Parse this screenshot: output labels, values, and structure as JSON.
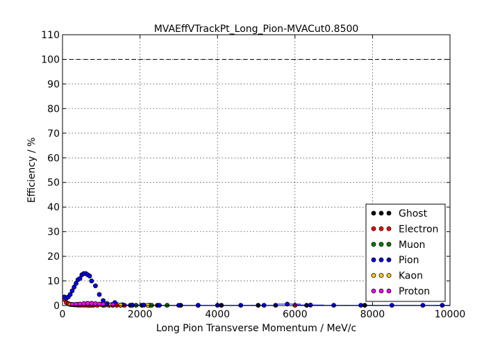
{
  "chart_data": {
    "type": "scatter",
    "title": "MVAEffVTrackPt_Long_Pion-MVACut0.8500",
    "xlabel": "Long Pion Transverse Momentum / MeV/c",
    "ylabel": "Efficiency / %",
    "xlim": [
      0,
      10000
    ],
    "ylim": [
      0,
      110
    ],
    "xticks": [
      "0",
      "2000",
      "4000",
      "6000",
      "8000",
      "10000"
    ],
    "yticks": [
      "0",
      "10",
      "20",
      "30",
      "40",
      "50",
      "60",
      "70",
      "80",
      "90",
      "100",
      "110"
    ],
    "grid": true,
    "reference_line": 100,
    "legend_position": "lower-right",
    "series": [
      {
        "name": "Ghost",
        "color": "#000000",
        "x": [
          1750,
          2050,
          2250,
          2450,
          3050,
          3500,
          4100,
          5050,
          5500,
          6300,
          7800
        ],
        "y": [
          0.1,
          0.1,
          0.1,
          0.1,
          0.1,
          0.1,
          0.1,
          0.1,
          0.1,
          0.1,
          0.1
        ]
      },
      {
        "name": "Electron",
        "color": "#ff0000",
        "x": [
          50,
          100,
          150,
          200,
          250,
          300,
          350,
          400,
          450,
          500,
          550,
          600,
          650,
          700,
          750,
          800,
          900,
          1050,
          1200,
          1400,
          1600,
          1800,
          6000
        ],
        "y": [
          2.5,
          1.2,
          0.8,
          0.5,
          0.4,
          0.3,
          0.3,
          0.2,
          0.2,
          0.2,
          0.2,
          0.2,
          0.1,
          0.1,
          0.1,
          0.1,
          0.1,
          0.1,
          0.1,
          0.1,
          0.1,
          0.1,
          0.1
        ]
      },
      {
        "name": "Muon",
        "color": "#008000",
        "x": [
          1100,
          1300,
          1500,
          1900,
          2300,
          2700
        ],
        "y": [
          0.2,
          0.1,
          0.1,
          0.1,
          0.1,
          0.1
        ]
      },
      {
        "name": "Pion",
        "color": "#0000ff",
        "x": [
          50,
          100,
          150,
          200,
          250,
          300,
          350,
          400,
          450,
          500,
          550,
          600,
          650,
          700,
          750,
          850,
          950,
          1050,
          1150,
          1350,
          1550,
          1800,
          2100,
          2500,
          3000,
          3500,
          4000,
          4600,
          5200,
          5800,
          6400,
          7000,
          7700,
          8500,
          9300,
          9800
        ],
        "y": [
          3.5,
          3.0,
          3.5,
          4.5,
          6.0,
          7.5,
          9.0,
          10.5,
          11.0,
          12.5,
          13.0,
          13.0,
          12.5,
          12.0,
          10.0,
          8.0,
          4.5,
          2.0,
          0.8,
          1.2,
          0.3,
          0.2,
          0.2,
          0.1,
          0.1,
          0.1,
          0.1,
          0.1,
          0.1,
          0.6,
          0.2,
          0.1,
          0.1,
          0.1,
          0.1,
          0.1
        ],
        "xerr": [
          25,
          25,
          25,
          25,
          25,
          25,
          25,
          25,
          25,
          25,
          25,
          25,
          25,
          25,
          25,
          50,
          50,
          50,
          50,
          100,
          100,
          150,
          150,
          250,
          250,
          250,
          250,
          350,
          350,
          350,
          350,
          350,
          400,
          400,
          400,
          200
        ]
      },
      {
        "name": "Kaon",
        "color": "#ffcc00",
        "x": [
          200,
          400,
          600,
          800,
          1000,
          1250,
          1500,
          2200
        ],
        "y": [
          0.4,
          0.5,
          0.6,
          0.5,
          0.4,
          0.3,
          0.2,
          0.1
        ]
      },
      {
        "name": "Proton",
        "color": "#ff00ff",
        "x": [
          250,
          350,
          450,
          550,
          650,
          750,
          850,
          950,
          1050,
          1300
        ],
        "y": [
          0.4,
          0.5,
          0.6,
          0.8,
          0.9,
          0.9,
          0.8,
          0.6,
          0.5,
          0.3
        ]
      }
    ]
  }
}
